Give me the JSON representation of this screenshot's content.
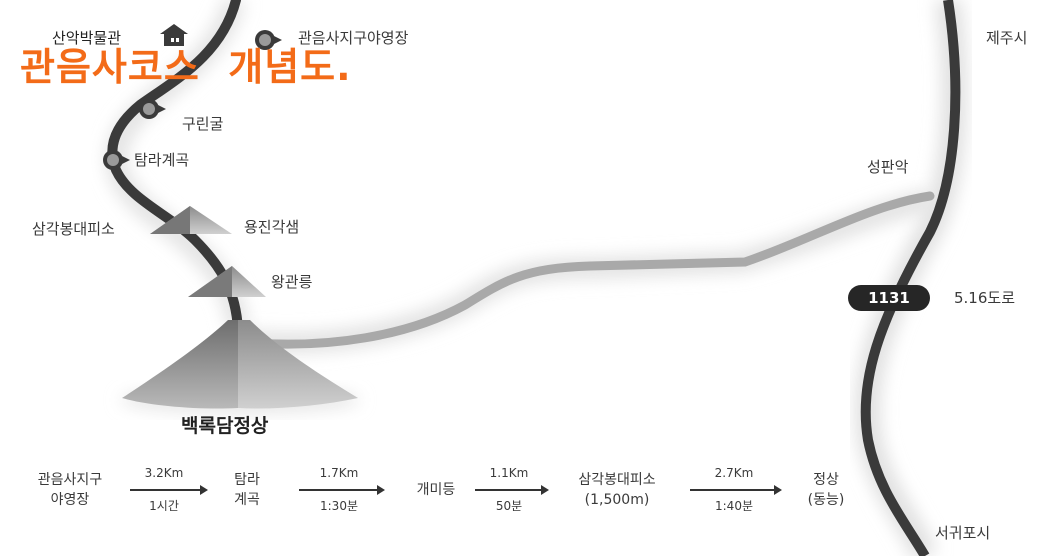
{
  "title": "관음사코스  개념도.",
  "places": {
    "museum": "산악박물관",
    "campsite": "관음사지구야영장",
    "jeju_city": "제주시",
    "gurin_cave": "구린굴",
    "tamra_valley": "탐라계곡",
    "seongpanak": "성판악",
    "samgak_shelter": "삼각봉대피소",
    "yongjin_spring": "용진각샘",
    "wanggwan_rock": "왕관릉",
    "road_number": "1131",
    "road_name": "5.16도로",
    "summit": "백록담정상",
    "seogwipo": "서귀포시"
  },
  "route": {
    "stops": [
      {
        "line1": "관음사지구",
        "line2": "야영장"
      },
      {
        "line1": "탐라",
        "line2": "계곡"
      },
      {
        "line1": "개미등",
        "line2": ""
      },
      {
        "line1": "삼각봉대피소",
        "line2": "(1,500m)"
      },
      {
        "line1": "정상",
        "line2": "(동능)"
      }
    ],
    "legs": [
      {
        "distance": "3.2Km",
        "time": "1시간"
      },
      {
        "distance": "1.7Km",
        "time": "1:30분"
      },
      {
        "distance": "1.1Km",
        "time": "50분"
      },
      {
        "distance": "2.7Km",
        "time": "1:40분"
      }
    ]
  }
}
